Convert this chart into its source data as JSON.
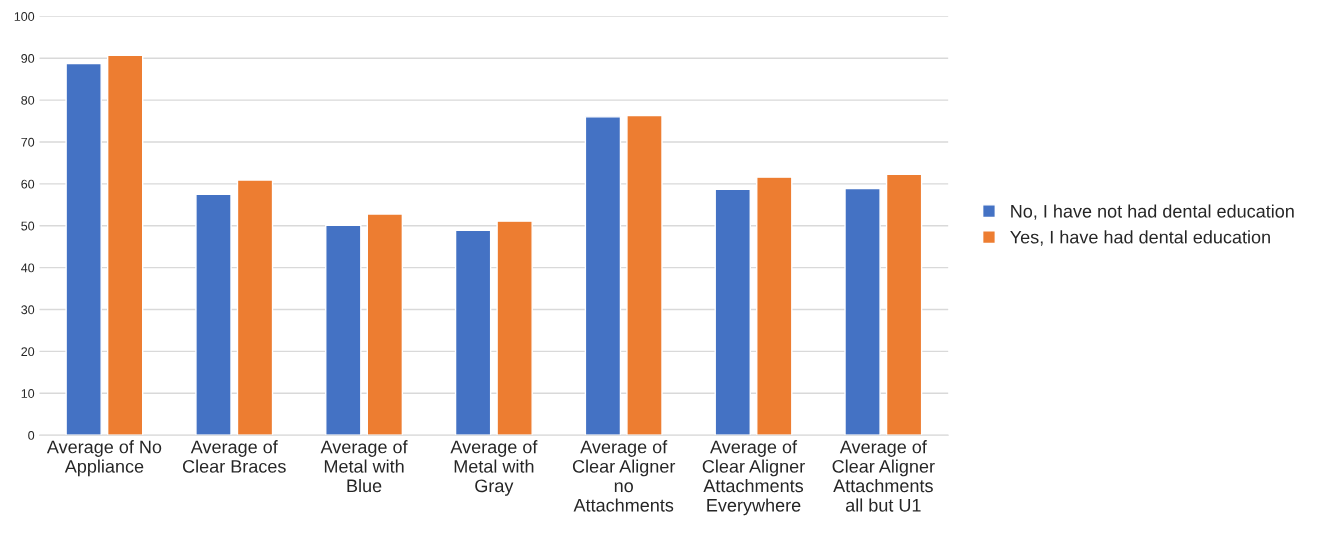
{
  "chart_data": {
    "type": "bar",
    "categories": [
      "Average of No Appliance",
      "Average of Clear Braces",
      "Average of Metal with Blue",
      "Average of Metal with Gray",
      "Average of Clear Aligner no Attachments",
      "Average of Clear Aligner Attachments Everywhere",
      "Average of Clear Aligner Attachments all but U1"
    ],
    "series": [
      {
        "name": "No, I have not had dental education",
        "color": "#4472c4",
        "values": [
          88.7,
          57.5,
          50.1,
          48.9,
          76.0,
          58.7,
          58.9
        ]
      },
      {
        "name": "Yes, I have had dental education",
        "color": "#ed7d31",
        "values": [
          90.7,
          60.9,
          52.8,
          51.1,
          76.3,
          61.6,
          62.3
        ]
      }
    ],
    "ylim": [
      0,
      100
    ],
    "yticks": [
      0,
      10,
      20,
      30,
      40,
      50,
      60,
      70,
      80,
      90,
      100
    ],
    "grid": "y",
    "legend": "right"
  }
}
